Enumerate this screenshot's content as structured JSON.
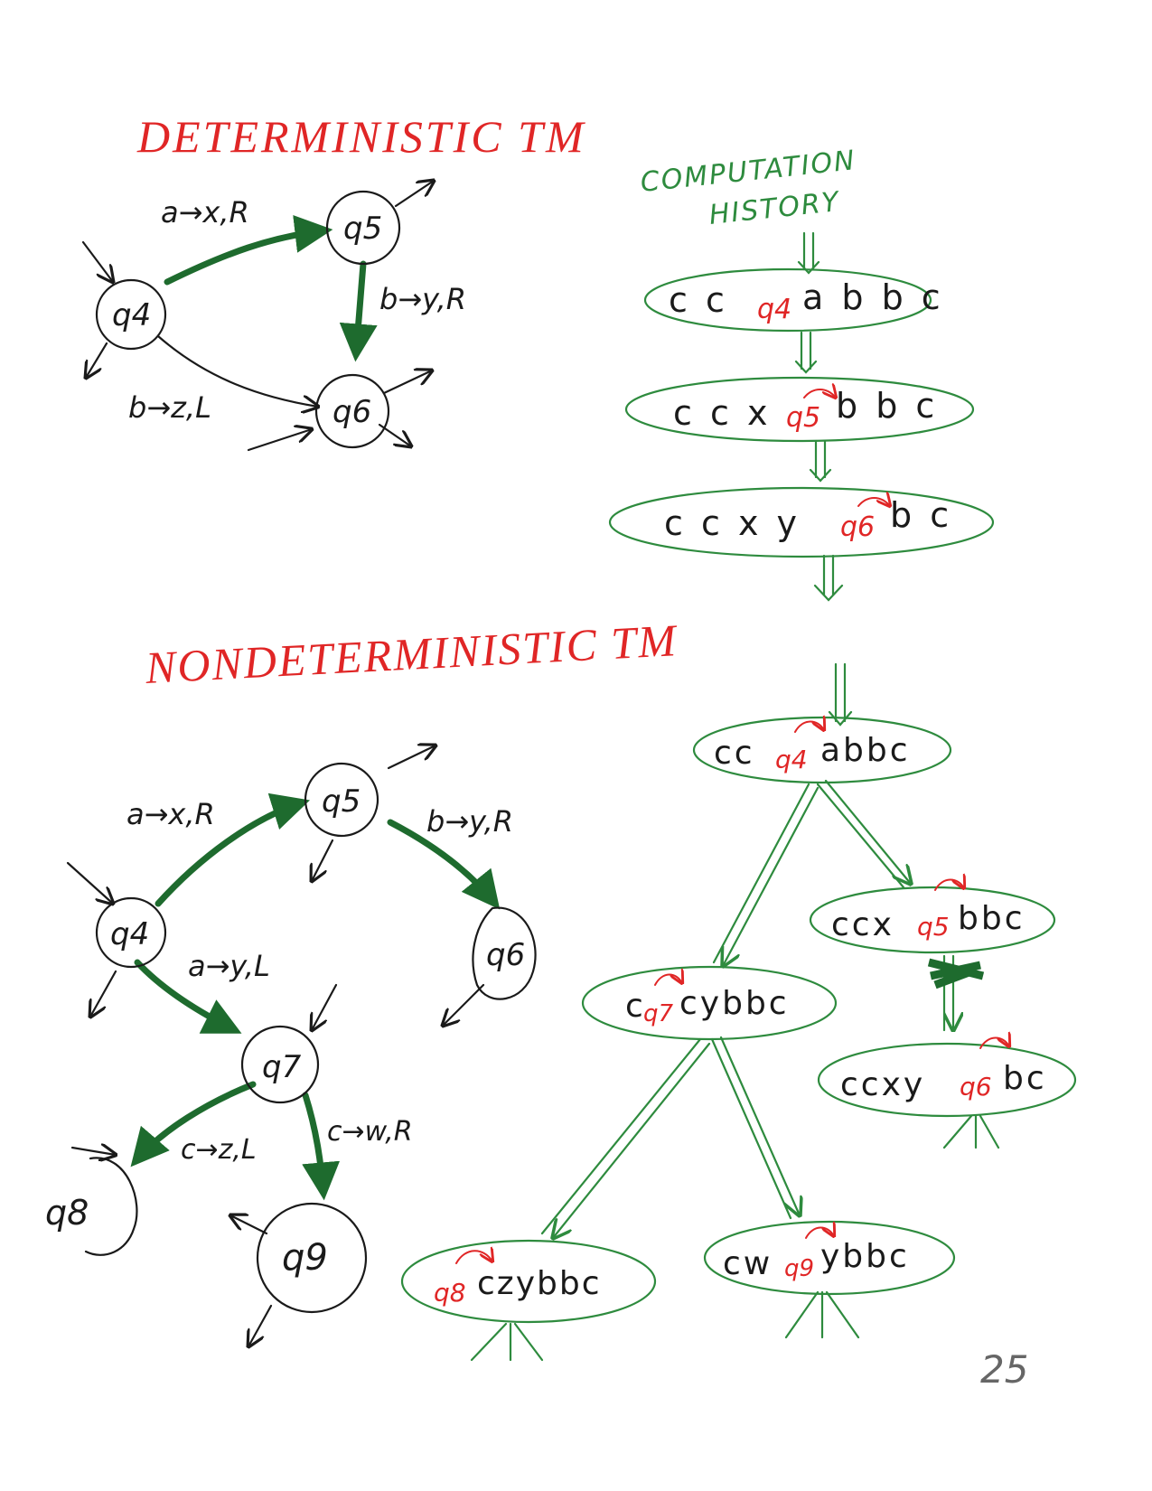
{
  "colors": {
    "title": "#e02626",
    "history": "#2e8b3e",
    "ink": "#1a1a1a",
    "highlight": "#1e6b2e",
    "head": "#e02626"
  },
  "det": {
    "title": "DETERMINISTIC TM",
    "states": {
      "q4": "q4",
      "q5": "q5",
      "q6": "q6"
    },
    "edges": {
      "e45": "a→x,R",
      "e56": "b→y,R",
      "e46": "b→z,L"
    }
  },
  "history": {
    "title_line1": "COMPUTATION",
    "title_line2": "HISTORY",
    "configs": [
      {
        "left": "c c",
        "state": "q4",
        "right": "a b b c"
      },
      {
        "left": "c c x",
        "state": "q5",
        "right": "b b c"
      },
      {
        "left": "c c x y",
        "state": "q6",
        "right": "b c"
      }
    ]
  },
  "nondet": {
    "title": "NONDETERMINISTIC TM",
    "states": {
      "q4": "q4",
      "q5": "q5",
      "q6": "q6",
      "q7": "q7",
      "q8": "q8",
      "q9": "q9"
    },
    "edges": {
      "e45": "a→x,R",
      "e56": "b→y,R",
      "e47": "a→y,L",
      "e78": "c→z,L",
      "e79": "c→w,R"
    }
  },
  "tree": {
    "root": {
      "left": "cc",
      "state": "q4",
      "right": "abbc"
    },
    "n5": {
      "left": "ccx",
      "state": "q5",
      "right": "bbc"
    },
    "n7": {
      "left": "c",
      "state": "q7",
      "right": "cybbc"
    },
    "n6": {
      "left": "ccxy",
      "state": "q6",
      "right": "bc"
    },
    "n8": {
      "left": "",
      "state": "q8",
      "right": "czybbc"
    },
    "n9": {
      "left": "cw",
      "state": "q9",
      "right": "ybbc"
    }
  },
  "page_number": "25"
}
